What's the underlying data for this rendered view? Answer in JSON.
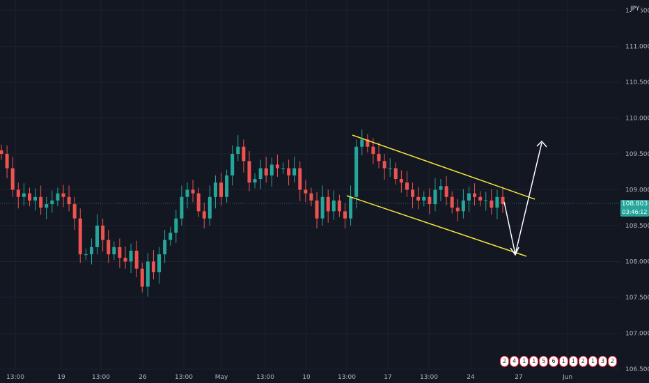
{
  "currency": "JPY",
  "last_price": "108.803",
  "countdown": "03:46:12",
  "colors": {
    "background": "#131722",
    "up": "#26a69a",
    "down": "#ef5350",
    "channel": "#f5e63b",
    "arrow": "#ffffff",
    "grid": "#1e222d"
  },
  "events": [
    "2",
    "4",
    "1",
    "1",
    "5",
    "6",
    "1",
    "1",
    "2",
    "1",
    "3",
    "2"
  ],
  "chart_data": {
    "type": "candlestick",
    "title": "",
    "ylim": [
      106.5,
      111.5
    ],
    "yticks": [
      111.5,
      111.0,
      110.5,
      110.0,
      109.5,
      109.0,
      108.5,
      108.0,
      107.5,
      107.0,
      106.5
    ],
    "ytick_labels": [
      "111.500",
      "111.000",
      "110.500",
      "110.000",
      "109.500",
      "109.000",
      "108.500",
      "108.000",
      "107.500",
      "107.000",
      "106.500"
    ],
    "xtick_labels": [
      "13:00",
      "19",
      "13:00",
      "26",
      "13:00",
      "May",
      "13:00",
      "10",
      "13:00",
      "17",
      "13:00",
      "24",
      "27",
      "Jun"
    ],
    "grid": true,
    "series": [
      {
        "values": [
          109.5,
          109.3,
          109.0,
          108.9,
          108.95,
          108.85,
          108.9,
          108.75,
          108.8,
          108.85,
          108.95,
          108.9,
          108.8,
          108.6,
          108.1,
          108.1,
          108.2,
          108.5,
          108.3,
          108.1,
          108.2,
          108.05,
          108.0,
          108.15,
          107.9,
          107.65,
          108.0,
          107.85,
          108.1,
          108.3,
          108.4,
          108.6,
          108.9,
          109.0,
          108.95,
          108.7,
          108.6,
          108.9,
          109.1,
          108.9,
          109.2,
          109.5,
          109.6,
          109.4,
          109.1,
          109.15,
          109.3,
          109.2,
          109.35,
          109.3,
          109.3,
          109.2,
          109.3,
          109.0,
          108.95,
          108.85,
          108.6,
          108.9,
          108.7,
          108.85,
          108.7,
          108.6,
          108.9,
          109.6,
          109.7,
          109.6,
          109.5,
          109.4,
          109.3,
          109.3,
          109.15,
          109.1,
          109.0,
          108.9,
          108.85,
          108.9,
          108.8,
          109.0,
          109.05,
          108.9,
          108.75,
          108.7,
          108.85,
          108.95,
          108.9,
          108.85,
          108.85,
          108.75,
          108.9,
          108.8
        ]
      }
    ],
    "annotations": {
      "channel_upper": [
        {
          "date": "13",
          "value": 109.75
        },
        {
          "date": "26",
          "value": 108.9
        }
      ],
      "channel_lower": [
        {
          "date": "13",
          "value": 108.95
        },
        {
          "date": "26",
          "value": 108.05
        }
      ],
      "arrow_path": [
        {
          "value": 108.85
        },
        {
          "value": 108.1
        },
        {
          "value": 109.7
        }
      ]
    }
  }
}
